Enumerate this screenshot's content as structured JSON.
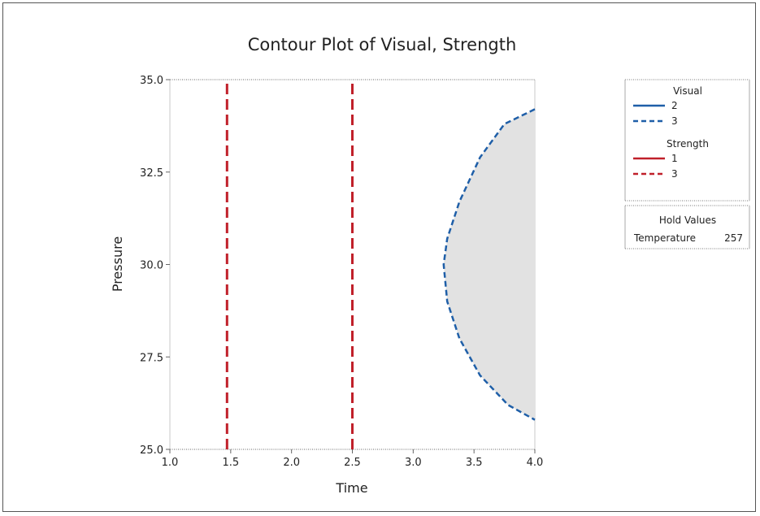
{
  "chart_data": {
    "type": "contour",
    "title": "Contour Plot of Visual, Strength",
    "xlabel": "Time",
    "ylabel": "Pressure",
    "xlim": [
      1.0,
      4.0
    ],
    "ylim": [
      25.0,
      35.0
    ],
    "x_ticks": [
      "1.0",
      "1.5",
      "2.0",
      "2.5",
      "3.0",
      "3.5",
      "4.0"
    ],
    "y_ticks": [
      "25.0",
      "27.5",
      "30.0",
      "32.5",
      "35.0"
    ],
    "colors": {
      "visual": "#1f5fa8",
      "strength": "#c0202a",
      "feasible_fill": "#e2e2e2"
    },
    "series": [
      {
        "group": "Visual",
        "level": "3",
        "style": "dashed",
        "points": [
          [
            4.0,
            34.2
          ],
          [
            3.75,
            33.8
          ],
          [
            3.55,
            32.9
          ],
          [
            3.38,
            31.7
          ],
          [
            3.28,
            30.7
          ],
          [
            3.25,
            30.0
          ],
          [
            3.28,
            29.0
          ],
          [
            3.38,
            28.0
          ],
          [
            3.55,
            27.0
          ],
          [
            3.78,
            26.2
          ],
          [
            4.0,
            25.8
          ]
        ]
      },
      {
        "group": "Strength",
        "level": "3",
        "style": "dashed",
        "points": [
          [
            1.47,
            25.0
          ],
          [
            1.47,
            35.0
          ]
        ]
      },
      {
        "group": "Strength",
        "level": "3",
        "style": "dashed",
        "points": [
          [
            2.5,
            25.0
          ],
          [
            2.5,
            35.0
          ]
        ]
      }
    ],
    "legend": {
      "position": "right",
      "groups": [
        {
          "title": "Visual",
          "entries": [
            {
              "label": "2",
              "style": "solid"
            },
            {
              "label": "3",
              "style": "dashed"
            }
          ]
        },
        {
          "title": "Strength",
          "entries": [
            {
              "label": "1",
              "style": "solid"
            },
            {
              "label": "3",
              "style": "dashed"
            }
          ]
        }
      ],
      "hold_title": "Hold Values",
      "hold_values": [
        {
          "name": "Temperature",
          "value": "257"
        }
      ]
    }
  }
}
